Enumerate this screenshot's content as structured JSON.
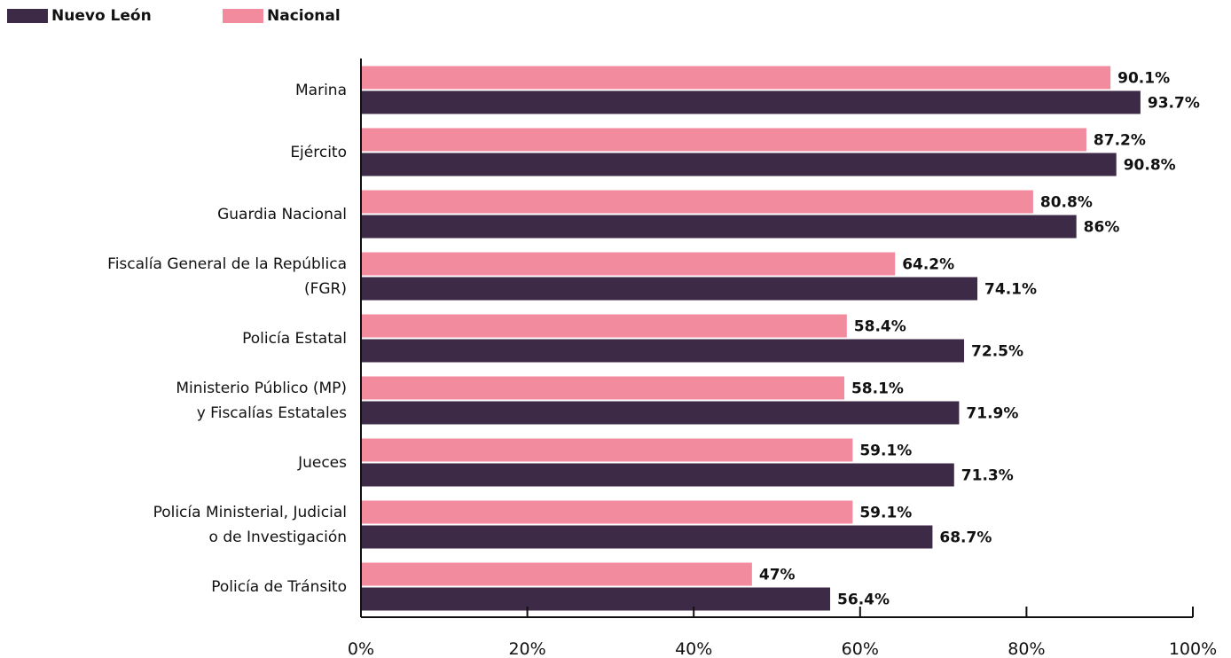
{
  "chart_data": {
    "type": "bar",
    "orientation": "horizontal",
    "categories": [
      "Marina",
      "Ejército",
      "Guardia Nacional",
      "Fiscalía General de la República\n(FGR)",
      "Policía Estatal",
      "Ministerio Público (MP)\ny Fiscalías Estatales",
      "Jueces",
      "Policía Ministerial, Judicial\no de Investigación",
      "Policía de Tránsito"
    ],
    "series": [
      {
        "name": "Nacional",
        "color": "#f28b9e",
        "values": [
          90.1,
          87.2,
          80.8,
          64.2,
          58.4,
          58.1,
          59.1,
          59.1,
          47
        ],
        "labels": [
          "90.1%",
          "87.2%",
          "80.8%",
          "64.2%",
          "58.4%",
          "58.1%",
          "59.1%",
          "59.1%",
          "47%"
        ]
      },
      {
        "name": "Nuevo León",
        "color": "#3d2a47",
        "values": [
          93.7,
          90.8,
          86,
          74.1,
          72.5,
          71.9,
          71.3,
          68.7,
          56.4
        ],
        "labels": [
          "93.7%",
          "90.8%",
          "86%",
          "74.1%",
          "72.5%",
          "71.9%",
          "71.3%",
          "68.7%",
          "56.4%"
        ]
      }
    ],
    "legend": [
      {
        "name": "Nuevo León",
        "color": "#3d2a47"
      },
      {
        "name": "Nacional",
        "color": "#f28b9e"
      }
    ],
    "legend_position": "top-left",
    "xlim": [
      0,
      100
    ],
    "xticks": [
      0,
      20,
      40,
      60,
      80,
      100
    ],
    "xtick_labels": [
      "0%",
      "20%",
      "40%",
      "60%",
      "80%",
      "100%"
    ],
    "grid": false
  }
}
